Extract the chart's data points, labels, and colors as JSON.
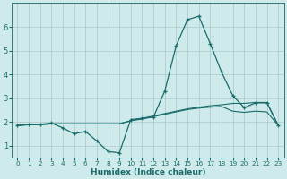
{
  "xlabel": "Humidex (Indice chaleur)",
  "bg_color": "#ceeaea",
  "grid_color": "#aac8c8",
  "line_color": "#1a6b6b",
  "x_ticks": [
    0,
    1,
    2,
    3,
    4,
    5,
    6,
    7,
    8,
    9,
    10,
    11,
    12,
    13,
    14,
    15,
    16,
    17,
    18,
    19,
    20,
    21,
    22,
    23
  ],
  "ylim": [
    0.5,
    7.0
  ],
  "xlim": [
    -0.5,
    23.5
  ],
  "y_ticks": [
    1,
    2,
    3,
    4,
    5,
    6
  ],
  "line1_x": [
    0,
    1,
    2,
    3,
    4,
    5,
    6,
    7,
    8,
    9,
    10,
    11,
    12,
    13,
    14,
    15,
    16,
    17,
    18,
    19,
    20,
    21,
    22,
    23
  ],
  "line1_y": [
    1.85,
    1.9,
    1.9,
    1.95,
    1.75,
    1.5,
    1.6,
    1.2,
    0.75,
    0.7,
    2.1,
    2.15,
    2.2,
    3.3,
    5.2,
    6.3,
    6.45,
    5.3,
    4.1,
    3.1,
    2.6,
    2.8,
    2.8,
    1.85
  ],
  "line2_x": [
    0,
    1,
    2,
    3,
    4,
    5,
    6,
    7,
    8,
    9,
    10,
    11,
    12,
    13,
    14,
    15,
    16,
    17,
    18,
    19,
    20,
    21,
    22,
    23
  ],
  "line2_y": [
    1.85,
    1.88,
    1.88,
    1.92,
    1.92,
    1.92,
    1.92,
    1.92,
    1.92,
    1.92,
    2.05,
    2.15,
    2.25,
    2.35,
    2.45,
    2.55,
    2.62,
    2.68,
    2.72,
    2.78,
    2.78,
    2.82,
    2.82,
    1.85
  ],
  "line3_x": [
    0,
    1,
    2,
    3,
    4,
    5,
    6,
    7,
    8,
    9,
    10,
    11,
    12,
    13,
    14,
    15,
    16,
    17,
    18,
    19,
    20,
    21,
    22,
    23
  ],
  "line3_y": [
    1.85,
    1.88,
    1.88,
    1.92,
    1.92,
    1.92,
    1.92,
    1.92,
    1.92,
    1.92,
    2.05,
    2.12,
    2.22,
    2.32,
    2.42,
    2.52,
    2.58,
    2.62,
    2.65,
    2.45,
    2.4,
    2.45,
    2.42,
    1.85
  ]
}
